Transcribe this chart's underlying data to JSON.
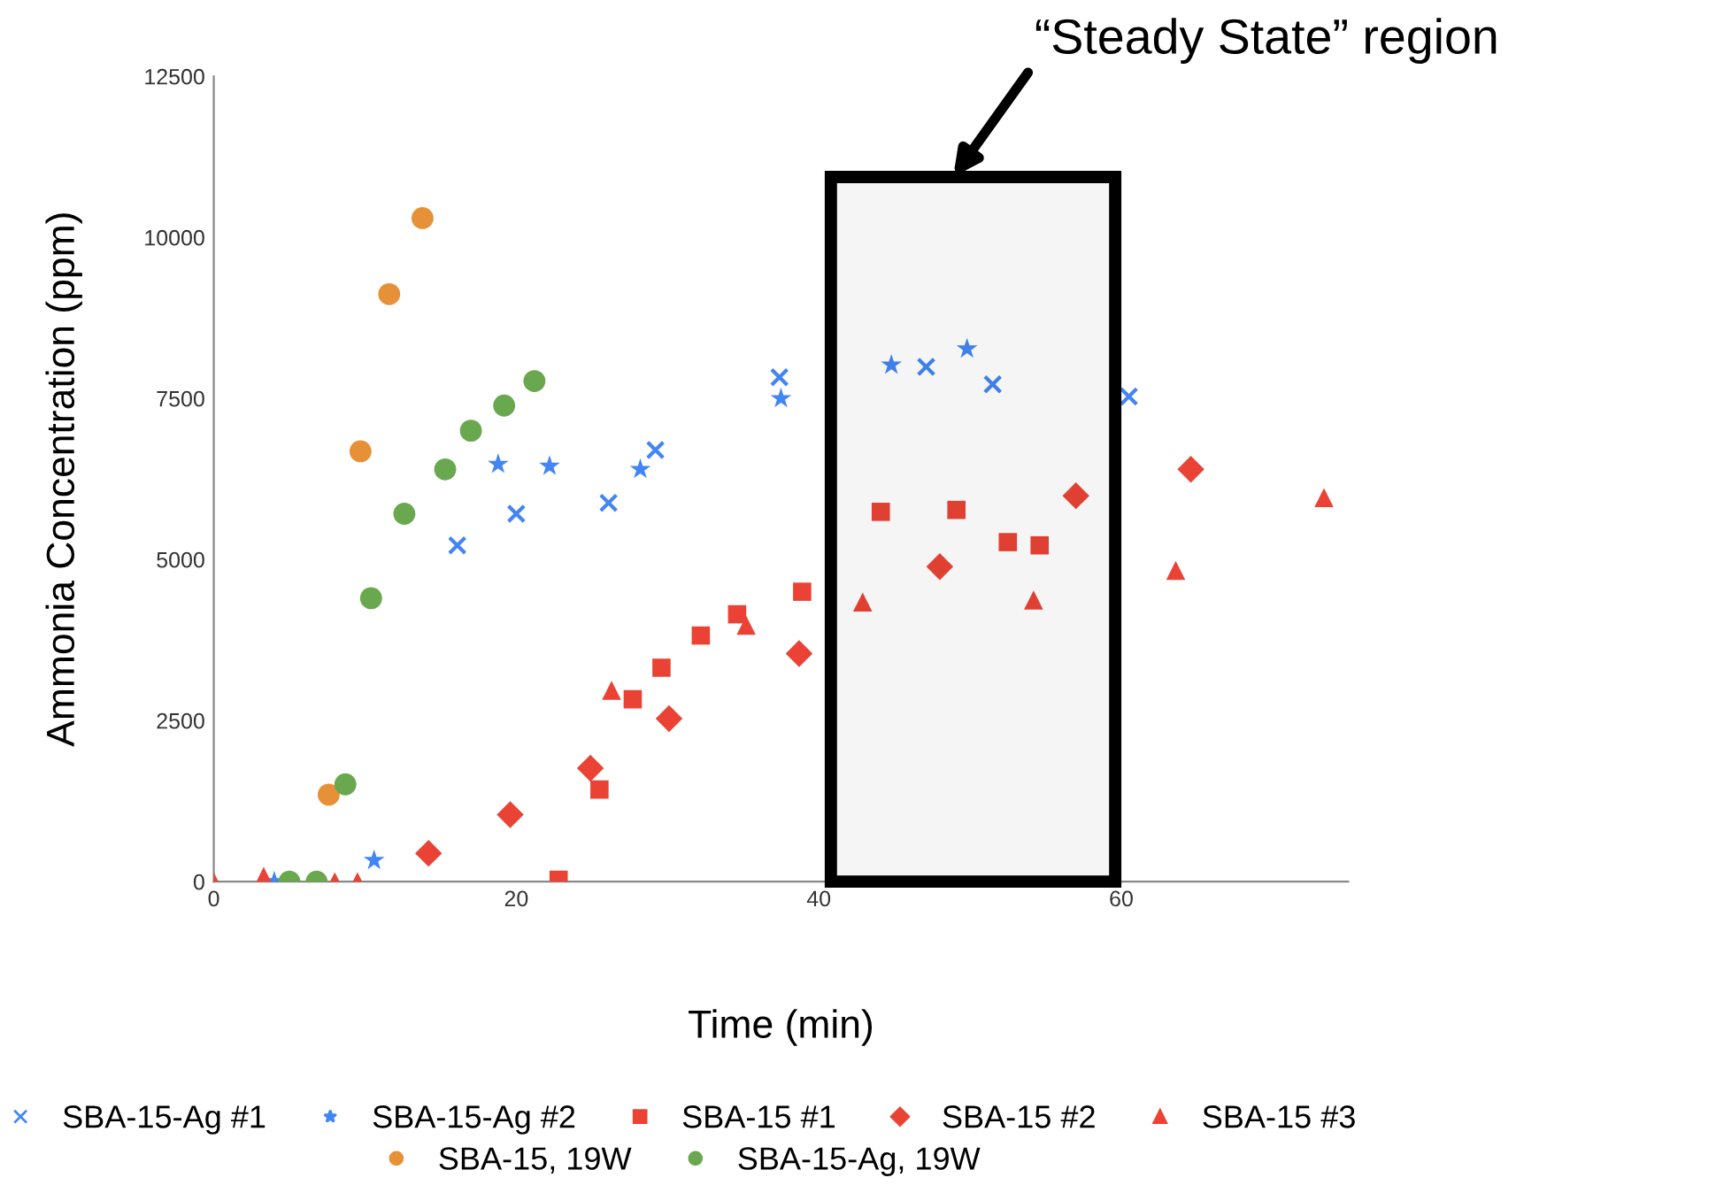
{
  "chart_data": {
    "type": "scatter",
    "xlabel": "Time (min)",
    "ylabel": "Ammonia Concentration (ppm)",
    "xlim": [
      0,
      75
    ],
    "xticks": [
      0,
      20,
      40,
      60
    ],
    "ylim": [
      0,
      12500
    ],
    "yticks": [
      0,
      2500,
      5000,
      7500,
      10000,
      12500
    ],
    "grid": false,
    "legend": "bottom",
    "series": [
      {
        "name": "SBA-15-Ag #1",
        "color": "#4285f4",
        "marker": "cross",
        "x": [
          16.1,
          20.0,
          26.1,
          29.2,
          37.4,
          47.1,
          51.5,
          60.5
        ],
        "values": [
          5220,
          5710,
          5880,
          6700,
          7830,
          7990,
          7720,
          7530
        ]
      },
      {
        "name": "SBA-15-Ag #2",
        "color": "#4285f4",
        "marker": "star",
        "x": [
          4.0,
          10.6,
          18.8,
          22.2,
          28.2,
          37.5,
          44.8,
          49.8
        ],
        "values": [
          0,
          330,
          6480,
          6450,
          6400,
          7500,
          8020,
          8270
        ]
      },
      {
        "name": "SBA-15 #1",
        "color": "#ea4335",
        "marker": "square",
        "x": [
          22.8,
          25.5,
          27.7,
          29.6,
          32.2,
          34.6,
          38.9,
          44.1,
          49.1,
          52.5,
          54.6
        ],
        "values": [
          30,
          1430,
          2830,
          3320,
          3820,
          4150,
          4500,
          5740,
          5770,
          5270,
          5220
        ]
      },
      {
        "name": "SBA-15 #2",
        "color": "#ea4335",
        "marker": "diamond",
        "x": [
          14.2,
          19.6,
          24.9,
          30.1,
          38.7,
          48.0,
          57.0,
          64.6
        ],
        "values": [
          440,
          1040,
          1760,
          2530,
          3540,
          4890,
          5990,
          6400
        ]
      },
      {
        "name": "SBA-15 #3",
        "color": "#ea4335",
        "marker": "triangle",
        "x": [
          0,
          3.3,
          8.0,
          9.5,
          26.3,
          35.2,
          42.9,
          54.2,
          63.6,
          73.4
        ],
        "values": [
          0,
          80,
          0,
          0,
          2970,
          3980,
          4340,
          4370,
          4830,
          5960
        ]
      },
      {
        "name": "SBA-15, 19W",
        "color": "#e69138",
        "marker": "circle",
        "x": [
          7.6,
          9.7,
          11.6,
          13.8
        ],
        "values": [
          1350,
          6680,
          9120,
          10300
        ]
      },
      {
        "name": "SBA-15-Ag, 19W",
        "color": "#6aa84f",
        "marker": "circle",
        "x": [
          5.0,
          6.8,
          8.7,
          10.4,
          12.6,
          15.3,
          17.0,
          19.2,
          21.2
        ],
        "values": [
          0,
          0,
          1510,
          4400,
          5710,
          6400,
          7000,
          7390,
          7770
        ]
      }
    ],
    "bands": [
      {
        "axis": "x",
        "from": 40.8,
        "to": 59.6,
        "label": "“Steady State” region",
        "color": "#000000"
      }
    ]
  }
}
